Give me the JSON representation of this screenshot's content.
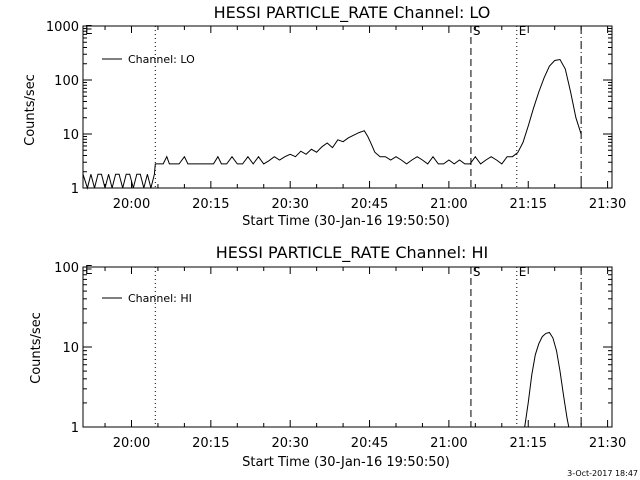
{
  "chart_data": [
    {
      "type": "line",
      "title": "HESSI PARTICLE_RATE Channel: LO",
      "xlabel": "Start Time (30-Jan-16 19:50:50)",
      "ylabel": "Counts/sec",
      "yscale": "log",
      "ylim": [
        1,
        1000
      ],
      "xlim": [
        "19:50:50",
        "21:30:50"
      ],
      "xticks": [
        "20:00",
        "20:15",
        "20:30",
        "20:45",
        "21:00",
        "21:15",
        "21:30"
      ],
      "yticks": [
        "1",
        "10",
        "100",
        "1000"
      ],
      "legend": "top-left",
      "series": [
        {
          "name": "Channel: LO",
          "x": [
            "19:50:50",
            "19:51:40",
            "19:52:20",
            "19:53:00",
            "19:53:40",
            "19:54:20",
            "19:55:00",
            "19:55:40",
            "19:56:20",
            "19:57:00",
            "19:57:40",
            "19:58:20",
            "19:59:00",
            "19:59:40",
            "20:00:20",
            "20:01:00",
            "20:01:40",
            "20:02:20",
            "20:03:00",
            "20:03:40",
            "20:04:20",
            "20:04:30",
            "20:06:00",
            "20:06:40",
            "20:07:10",
            "20:09:00",
            "20:10:00",
            "20:10:40",
            "20:11:20",
            "20:13:00",
            "20:14:00",
            "20:15:00",
            "20:15:30",
            "20:16:20",
            "20:17:00",
            "20:18:00",
            "20:19:00",
            "20:20:00",
            "20:21:00",
            "20:22:00",
            "20:23:00",
            "20:24:00",
            "20:25:00",
            "20:26:00",
            "20:27:00",
            "20:28:00",
            "20:29:00",
            "20:30:00",
            "20:31:00",
            "20:32:00",
            "20:33:00",
            "20:34:00",
            "20:35:00",
            "20:36:00",
            "20:37:00",
            "20:38:00",
            "20:39:00",
            "20:40:00",
            "20:41:00",
            "20:42:00",
            "20:43:00",
            "20:44:00",
            "20:44:40",
            "20:45:20",
            "20:46:00",
            "20:47:00",
            "20:48:00",
            "20:49:00",
            "20:50:00",
            "20:51:00",
            "20:52:00",
            "20:53:00",
            "20:54:00",
            "20:55:00",
            "20:56:00",
            "20:57:00",
            "20:58:00",
            "20:59:00",
            "21:00:00",
            "21:01:00",
            "21:02:00",
            "21:03:00",
            "21:04:00",
            "21:05:00",
            "21:06:00",
            "21:07:00",
            "21:08:00",
            "21:09:00",
            "21:10:00",
            "21:11:00",
            "21:12:00",
            "21:13:00",
            "21:14:00",
            "21:15:00",
            "21:16:00",
            "21:17:00",
            "21:18:00",
            "21:19:00",
            "21:20:00",
            "21:21:00",
            "21:22:00",
            "21:23:00",
            "21:24:00",
            "21:25:00"
          ],
          "y": [
            1.8,
            1,
            1.8,
            1,
            1.8,
            1.8,
            1,
            1.8,
            1,
            1.8,
            1.8,
            1,
            1.8,
            1.8,
            1,
            1.8,
            1.8,
            1,
            1.8,
            1,
            1.8,
            2.8,
            2.8,
            3.8,
            2.8,
            2.8,
            3.8,
            2.8,
            2.8,
            2.8,
            2.8,
            2.8,
            2.8,
            3.8,
            2.8,
            2.8,
            3.8,
            2.8,
            2.8,
            3.8,
            2.8,
            3.8,
            2.8,
            3.2,
            3.8,
            3.3,
            3.8,
            4.2,
            3.8,
            4.8,
            4.2,
            5.2,
            4.6,
            5.8,
            6.8,
            5.6,
            7.8,
            7.2,
            8.5,
            9.5,
            10.6,
            11.5,
            9,
            6.5,
            4.6,
            3.8,
            3.8,
            3.3,
            3.8,
            3.3,
            2.8,
            3.3,
            3.8,
            3.3,
            2.8,
            3.8,
            2.8,
            2.8,
            3.3,
            2.8,
            3.3,
            2.8,
            2.8,
            3.8,
            2.8,
            3.3,
            3.8,
            3.3,
            2.8,
            3.8,
            3.8,
            4.5,
            7,
            14,
            30,
            60,
            110,
            180,
            230,
            240,
            160,
            60,
            20,
            10
          ]
        }
      ],
      "markers": [
        {
          "label": "",
          "time": "20:04:30",
          "style": "dotted"
        },
        {
          "label": "S",
          "time": "21:04:10",
          "style": "dashed"
        },
        {
          "label": "E",
          "time": "21:12:50",
          "style": "dotted"
        },
        {
          "label": "",
          "time": "21:25:00",
          "style": "dash-dot"
        }
      ],
      "corner_label": "E"
    },
    {
      "type": "line",
      "title": "HESSI PARTICLE_RATE Channel: HI",
      "xlabel": "Start Time (30-Jan-16 19:50:50)",
      "ylabel": "Counts/sec",
      "yscale": "log",
      "ylim": [
        1,
        100
      ],
      "xlim": [
        "19:50:50",
        "21:30:50"
      ],
      "xticks": [
        "20:00",
        "20:15",
        "20:30",
        "20:45",
        "21:00",
        "21:15",
        "21:30"
      ],
      "yticks": [
        "1",
        "10",
        "100"
      ],
      "legend": "top-left",
      "series": [
        {
          "name": "Channel: HI",
          "x": [
            "21:14:20",
            "21:15:00",
            "21:15:40",
            "21:16:20",
            "21:17:00",
            "21:17:40",
            "21:18:20",
            "21:19:00",
            "21:19:40",
            "21:20:20",
            "21:21:00",
            "21:21:40",
            "21:22:20",
            "21:22:40"
          ],
          "y": [
            1,
            2,
            4.5,
            8,
            11,
            13.5,
            14.8,
            15.2,
            13,
            9,
            5,
            2.5,
            1.3,
            1
          ]
        }
      ],
      "markers": [
        {
          "label": "",
          "time": "20:04:30",
          "style": "dotted"
        },
        {
          "label": "S",
          "time": "21:04:10",
          "style": "dashed"
        },
        {
          "label": "E",
          "time": "21:12:50",
          "style": "dotted"
        },
        {
          "label": "",
          "time": "21:25:00",
          "style": "dash-dot"
        }
      ],
      "corner_label": "E"
    }
  ],
  "footer": {
    "timestamp": "3-Oct-2017 18:47"
  }
}
